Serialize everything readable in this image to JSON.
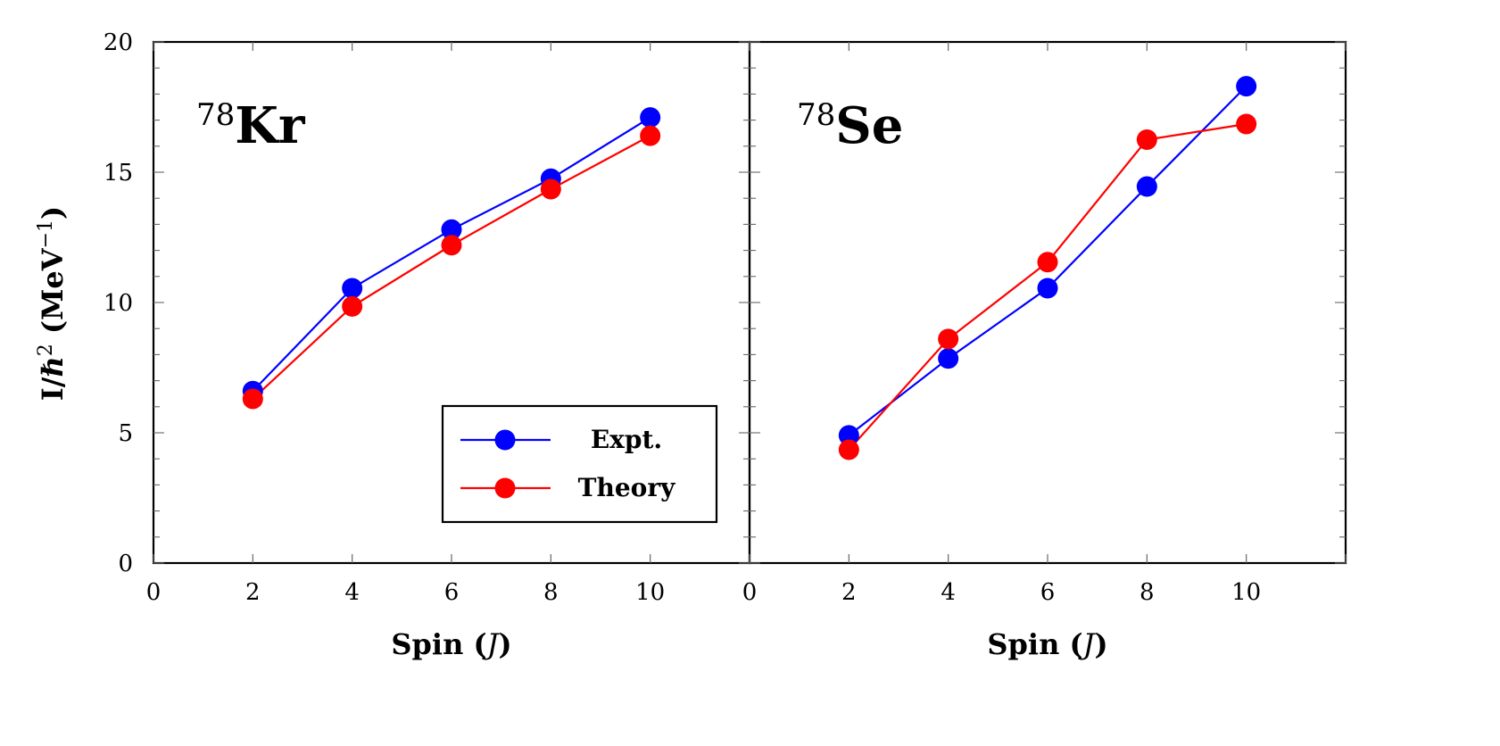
{
  "chart_data": [
    {
      "type": "line",
      "panel_label": {
        "mass_number": "78",
        "element": "Kr"
      },
      "x": [
        2,
        4,
        6,
        8,
        10
      ],
      "series": [
        {
          "name": "Expt.",
          "color": "#0000ff",
          "values": [
            6.6,
            10.55,
            12.8,
            14.75,
            17.1
          ]
        },
        {
          "name": "Theory",
          "color": "#ff0000",
          "values": [
            6.3,
            9.85,
            12.2,
            14.35,
            16.4
          ]
        }
      ],
      "xlabel": "Spin (J)",
      "ylabel": "I/ℏ² (MeV⁻¹)",
      "xlim": [
        0,
        12
      ],
      "ylim": [
        0,
        20
      ],
      "x_ticks": [
        "0",
        "2",
        "4",
        "6",
        "8",
        "10"
      ],
      "y_ticks": [
        "0",
        "5",
        "10",
        "15",
        "20"
      ],
      "legend": "bottom-right",
      "grid": false
    },
    {
      "type": "line",
      "panel_label": {
        "mass_number": "78",
        "element": "Se"
      },
      "x": [
        2,
        4,
        6,
        8,
        10
      ],
      "series": [
        {
          "name": "Expt.",
          "color": "#0000ff",
          "values": [
            4.9,
            7.85,
            10.55,
            14.45,
            18.3
          ]
        },
        {
          "name": "Theory",
          "color": "#ff0000",
          "values": [
            4.35,
            8.6,
            11.55,
            16.25,
            16.85
          ]
        }
      ],
      "xlabel": "Spin (J)",
      "xlim": [
        0,
        12
      ],
      "ylim": [
        0,
        20
      ],
      "x_ticks": [
        "0",
        "2",
        "4",
        "6",
        "8",
        "10"
      ],
      "grid": false
    }
  ],
  "legend": {
    "entries": [
      {
        "label": "Expt.",
        "color": "#0000ff"
      },
      {
        "label": "Theory",
        "color": "#ff0000"
      }
    ]
  },
  "axis_titles": {
    "y_main": "I/ℏ",
    "y_sup": "2",
    "y_unit_open": " (MeV",
    "y_unit_sup": "−1",
    "y_unit_close": ")",
    "x_prefix": "Spin (",
    "x_var": "J",
    "x_suffix": ")"
  }
}
